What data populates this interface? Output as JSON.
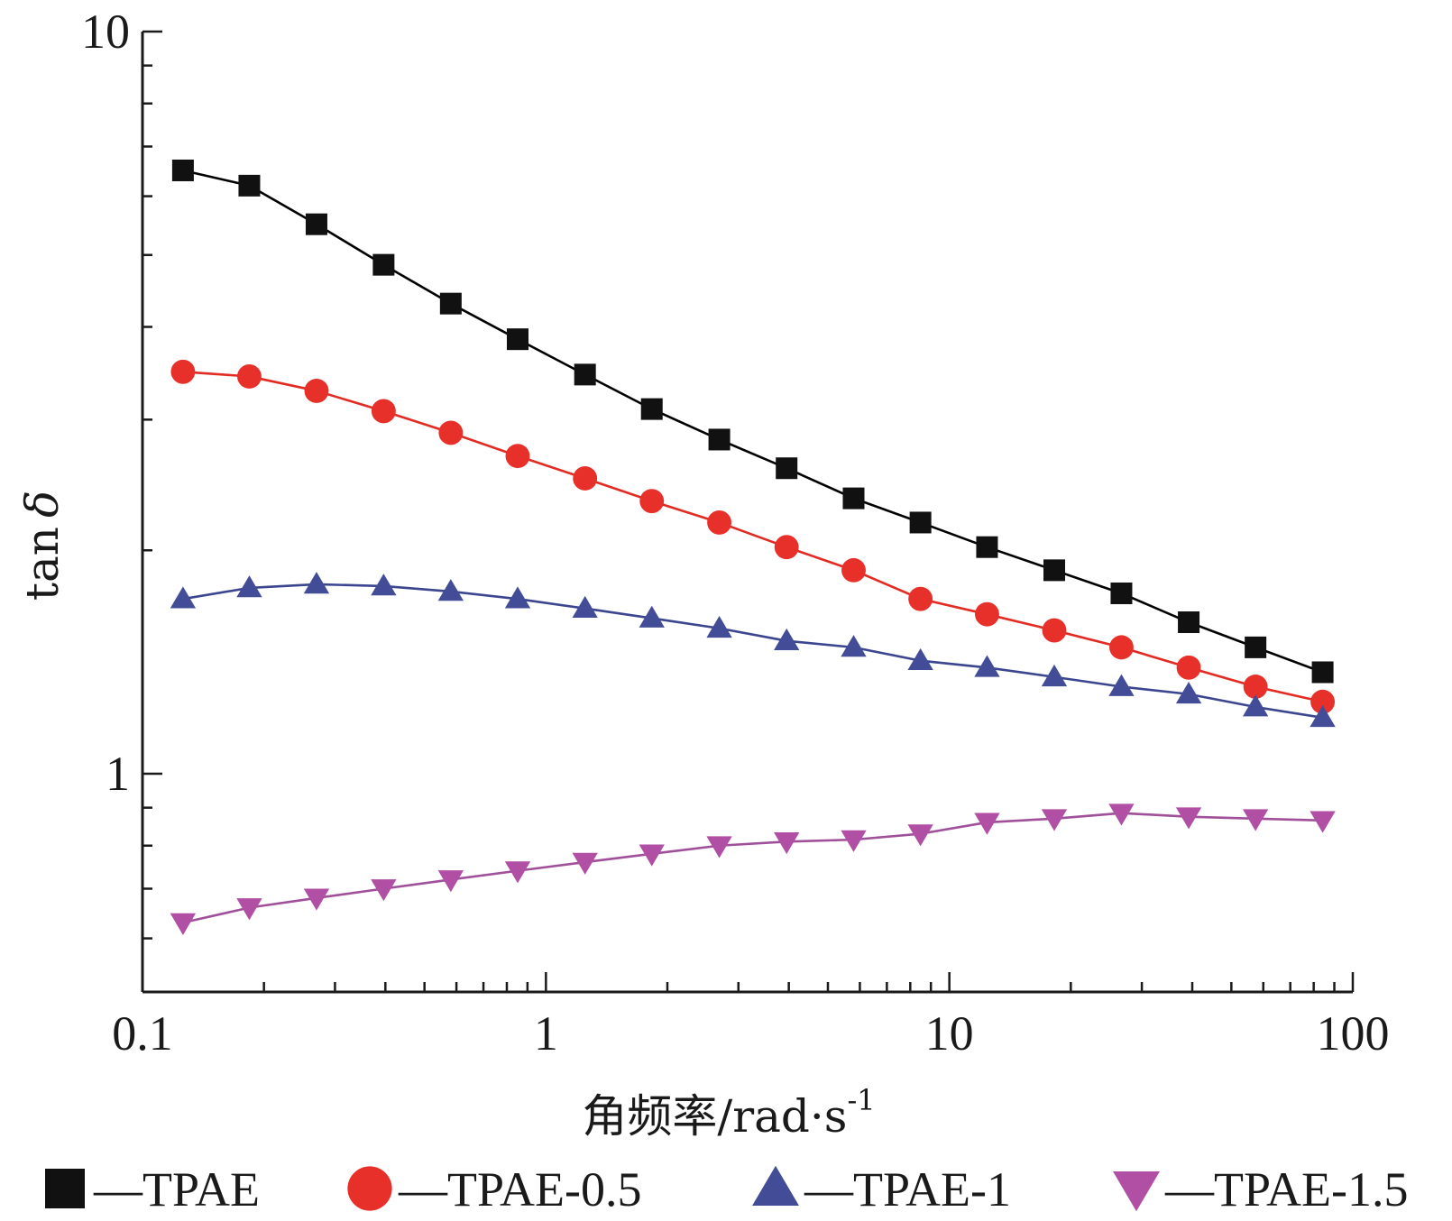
{
  "chart_data": {
    "type": "line",
    "x_scale": "log",
    "y_scale": "log",
    "xlabel": "角频率/rad·s",
    "xlabel_sup": "-1",
    "ylabel": "tan",
    "ylabel_symbol": "δ",
    "xlim": [
      0.1,
      100
    ],
    "ylim": [
      0.55,
      10
    ],
    "x_ticks": [
      {
        "value": 0.1,
        "label": "0.1"
      },
      {
        "value": 1,
        "label": "1"
      },
      {
        "value": 10,
        "label": "10"
      },
      {
        "value": 100,
        "label": "100"
      }
    ],
    "y_ticks": [
      {
        "value": 1,
        "label": "1"
      },
      {
        "value": 10,
        "label": "10"
      }
    ],
    "x": [
      0.126,
      0.184,
      0.27,
      0.396,
      0.581,
      0.851,
      1.25,
      1.83,
      2.69,
      3.95,
      5.79,
      8.48,
      12.4,
      18.2,
      26.7,
      39.2,
      57.4,
      84.2
    ],
    "series": [
      {
        "name": "TPAE",
        "marker": "square",
        "color": "#000000",
        "marker_color": "#111111",
        "values": [
          6.5,
          6.2,
          5.5,
          4.85,
          4.3,
          3.85,
          3.45,
          3.1,
          2.82,
          2.58,
          2.35,
          2.18,
          2.02,
          1.88,
          1.75,
          1.6,
          1.48,
          1.37
        ]
      },
      {
        "name": "TPAE-0.5",
        "marker": "circle",
        "color": "#e22b22",
        "marker_color": "#e8302a",
        "values": [
          3.48,
          3.43,
          3.28,
          3.08,
          2.88,
          2.68,
          2.5,
          2.33,
          2.18,
          2.02,
          1.88,
          1.72,
          1.64,
          1.56,
          1.48,
          1.39,
          1.31,
          1.25
        ]
      },
      {
        "name": "TPAE-1",
        "marker": "triangle-up",
        "color": "#3b4590",
        "marker_color": "#434d97",
        "values": [
          1.72,
          1.78,
          1.8,
          1.79,
          1.76,
          1.72,
          1.67,
          1.62,
          1.57,
          1.51,
          1.48,
          1.42,
          1.39,
          1.35,
          1.31,
          1.28,
          1.23,
          1.19
        ]
      },
      {
        "name": "TPAE-1.5",
        "marker": "triangle-down",
        "color": "#a0509a",
        "marker_color": "#b04fa3",
        "values": [
          0.63,
          0.66,
          0.68,
          0.7,
          0.72,
          0.74,
          0.76,
          0.78,
          0.8,
          0.81,
          0.815,
          0.83,
          0.86,
          0.87,
          0.885,
          0.875,
          0.87,
          0.865
        ]
      }
    ],
    "legend_placement": "bottom",
    "legend_separator": "—",
    "grid": false
  }
}
